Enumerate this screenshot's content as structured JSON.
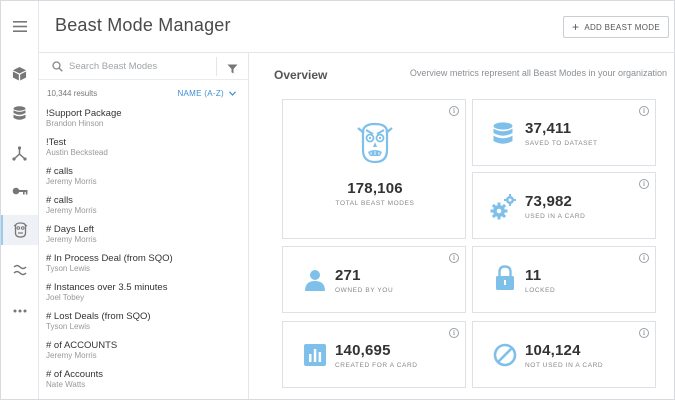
{
  "app": {
    "title": "Beast Mode Manager",
    "add_button_label": "ADD BEAST MODE",
    "accent": "#3a8fd6",
    "icon_color": "#7fc0ea"
  },
  "rail": {
    "items": [
      {
        "name": "menu-icon"
      },
      {
        "name": "cube-icon"
      },
      {
        "name": "database-icon"
      },
      {
        "name": "branch-icon"
      },
      {
        "name": "key-icon"
      },
      {
        "name": "beast-mode-icon",
        "active": true
      },
      {
        "name": "wave-icon"
      },
      {
        "name": "more-icon"
      }
    ]
  },
  "list": {
    "search_placeholder": "Search Beast Modes",
    "results": "10,344 results",
    "sort_label": "NAME (A-Z)",
    "items": [
      {
        "name": "!Support Package",
        "author": "Brandon Hinson"
      },
      {
        "name": "!Test",
        "author": "Austin Beckstead"
      },
      {
        "name": "# calls",
        "author": "Jeremy Morris"
      },
      {
        "name": "# calls",
        "author": "Jeremy Morris"
      },
      {
        "name": "# Days Left",
        "author": "Jeremy Morris"
      },
      {
        "name": "# In Process Deal (from SQO)",
        "author": "Tyson Lewis"
      },
      {
        "name": "# Instances over 3.5 minutes",
        "author": "Joel Tobey"
      },
      {
        "name": "# Lost Deals (from SQO)",
        "author": "Tyson Lewis"
      },
      {
        "name": "# of ACCOUNTS",
        "author": "Jeremy Morris"
      },
      {
        "name": "# of Accounts",
        "author": "Nate Watts"
      }
    ]
  },
  "overview": {
    "title": "Overview",
    "note": "Overview metrics represent all Beast Modes in your organization",
    "info_glyph": "i",
    "total": {
      "value": "178,106",
      "label": "TOTAL BEAST MODES"
    },
    "saved": {
      "value": "37,411",
      "label": "SAVED TO DATASET"
    },
    "used": {
      "value": "73,982",
      "label": "USED IN A CARD"
    },
    "owned": {
      "value": "271",
      "label": "OWNED BY YOU"
    },
    "locked": {
      "value": "11",
      "label": "LOCKED"
    },
    "created": {
      "value": "140,695",
      "label": "CREATED FOR A CARD"
    },
    "not_used": {
      "value": "104,124",
      "label": "NOT USED IN A CARD"
    }
  }
}
